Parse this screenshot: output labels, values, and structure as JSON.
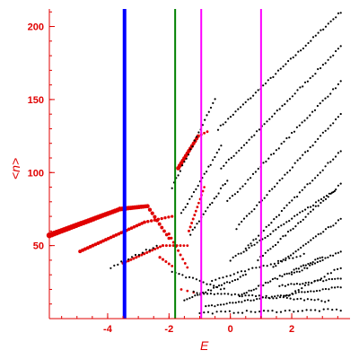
{
  "chart_data": {
    "type": "scatter",
    "xlabel": "E",
    "ylabel": "<n>",
    "xlim": [
      -5.9,
      3.9
    ],
    "ylim": [
      0,
      212
    ],
    "x_ticks": [
      {
        "value": -4,
        "label": "-4"
      },
      {
        "value": -2,
        "label": "-2"
      },
      {
        "value": 0,
        "label": "0"
      },
      {
        "value": 2,
        "label": "2"
      }
    ],
    "y_ticks": [
      {
        "value": 50,
        "label": "50"
      },
      {
        "value": 100,
        "label": "100"
      },
      {
        "value": 150,
        "label": "150"
      },
      {
        "value": 200,
        "label": "200"
      }
    ],
    "colors": {
      "axis": "#e00000",
      "red_points": "#e00000",
      "black_points": "#000000",
      "blue_line": "#0000ff",
      "green_line": "#008000",
      "magenta_line": "#ff00ff"
    },
    "vertical_lines": [
      {
        "x": -3.45,
        "color": "#0000ff",
        "width": "thick"
      },
      {
        "x": -1.8,
        "color": "#008000",
        "width": "medium"
      },
      {
        "x": -0.95,
        "color": "#ff00ff",
        "width": "medium"
      },
      {
        "x": 1.0,
        "color": "#ff00ff",
        "width": "medium"
      }
    ],
    "series": [
      {
        "color": "#e00000",
        "segments": [
          {
            "x_start": -5.9,
            "x_end": -3.6,
            "y_start": 57,
            "y_end": 75,
            "count": 30,
            "size_start": 3.2,
            "size_end": 2.6
          },
          {
            "x_start": -3.6,
            "x_end": -2.7,
            "y_start": 75,
            "y_end": 77,
            "count": 14,
            "size_start": 2.6,
            "size_end": 2.3
          },
          {
            "x_start": -2.7,
            "x_end": -2.0,
            "y_start": 77,
            "y_end": 55,
            "count": 10,
            "size_start": 2.2,
            "size_end": 1.8
          },
          {
            "x_start": -4.9,
            "x_end": -2.8,
            "y_start": 46,
            "y_end": 66,
            "count": 26,
            "size_start": 2.0,
            "size_end": 1.8
          },
          {
            "x_start": -2.8,
            "x_end": -1.9,
            "y_start": 66,
            "y_end": 70,
            "count": 9,
            "size_start": 1.8,
            "size_end": 1.6
          },
          {
            "x_start": -3.5,
            "x_end": -2.2,
            "y_start": 38,
            "y_end": 50,
            "count": 16,
            "size_start": 1.6,
            "size_end": 1.5
          },
          {
            "x_start": -2.2,
            "x_end": -1.4,
            "y_start": 50,
            "y_end": 50,
            "count": 8,
            "size_start": 1.5,
            "size_end": 1.4
          },
          {
            "x_start": -1.7,
            "x_end": -1.05,
            "y_start": 103,
            "y_end": 125,
            "count": 14,
            "size_start": 2.4,
            "size_end": 2.0
          },
          {
            "x_start": -1.05,
            "x_end": -0.75,
            "y_start": 125,
            "y_end": 128,
            "count": 4,
            "size_start": 1.6,
            "size_end": 1.4
          },
          {
            "x_start": -1.35,
            "x_end": -0.85,
            "y_start": 60,
            "y_end": 90,
            "count": 12,
            "size_start": 1.5,
            "size_end": 1.3
          },
          {
            "x_start": -2.0,
            "x_end": -1.4,
            "y_start": 58,
            "y_end": 35,
            "count": 9,
            "size_start": 1.6,
            "size_end": 1.4
          },
          {
            "x_start": -2.3,
            "x_end": -1.9,
            "y_start": 42,
            "y_end": 36,
            "count": 5,
            "size_start": 1.6,
            "size_end": 1.4
          },
          {
            "x_start": -1.6,
            "x_end": -1.2,
            "y_start": 20,
            "y_end": 18,
            "count": 3,
            "size_start": 1.4,
            "size_end": 1.3
          }
        ]
      },
      {
        "color": "#000000",
        "segments": [
          {
            "x_start": -0.4,
            "x_end": 3.6,
            "y_start": 130,
            "y_end": 210,
            "count": 50,
            "size_start": 1.1,
            "size_end": 1.1
          },
          {
            "x_start": -0.3,
            "x_end": 3.6,
            "y_start": 103,
            "y_end": 186,
            "count": 48,
            "size_start": 1.1,
            "size_end": 1.1
          },
          {
            "x_start": -0.1,
            "x_end": 3.6,
            "y_start": 80,
            "y_end": 162,
            "count": 45,
            "size_start": 1.1,
            "size_end": 1.1
          },
          {
            "x_start": 0.2,
            "x_end": 3.6,
            "y_start": 62,
            "y_end": 140,
            "count": 42,
            "size_start": 1.1,
            "size_end": 1.1
          },
          {
            "x_start": 0.5,
            "x_end": 3.6,
            "y_start": 48,
            "y_end": 115,
            "count": 38,
            "size_start": 1.1,
            "size_end": 1.1
          },
          {
            "x_start": 0.9,
            "x_end": 3.6,
            "y_start": 40,
            "y_end": 92,
            "count": 34,
            "size_start": 1.1,
            "size_end": 1.1
          },
          {
            "x_start": 1.4,
            "x_end": 3.6,
            "y_start": 35,
            "y_end": 68,
            "count": 28,
            "size_start": 1.1,
            "size_end": 1.1
          },
          {
            "x_start": 2.0,
            "x_end": 3.6,
            "y_start": 30,
            "y_end": 46,
            "count": 20,
            "size_start": 1.1,
            "size_end": 1.1
          },
          {
            "x_start": -3.9,
            "x_end": -2.4,
            "y_start": 35,
            "y_end": 50,
            "count": 14,
            "size_start": 1.1,
            "size_end": 1.1
          },
          {
            "x_start": -1.9,
            "x_end": -0.5,
            "y_start": 90,
            "y_end": 150,
            "count": 22,
            "size_start": 1.1,
            "size_end": 1.1
          },
          {
            "x_start": -1.6,
            "x_end": -0.3,
            "y_start": 72,
            "y_end": 118,
            "count": 20,
            "size_start": 1.1,
            "size_end": 1.1
          },
          {
            "x_start": -1.3,
            "x_end": -0.1,
            "y_start": 58,
            "y_end": 95,
            "count": 18,
            "size_start": 1.1,
            "size_end": 1.1
          },
          {
            "x_start": 0.0,
            "x_end": 3.4,
            "y_start": 40,
            "y_end": 88,
            "count": 40,
            "size_start": 1.1,
            "size_end": 1.1
          },
          {
            "x_start": 0.3,
            "x_end": 3.0,
            "y_start": 16,
            "y_end": 42,
            "count": 36,
            "size_start": 1.1,
            "size_end": 1.1
          },
          {
            "x_start": -1.5,
            "x_end": 0.5,
            "y_start": 12,
            "y_end": 30,
            "count": 24,
            "size_start": 1.1,
            "size_end": 1.1
          },
          {
            "x_start": -0.8,
            "x_end": 3.6,
            "y_start": 8,
            "y_end": 22,
            "count": 46,
            "size_start": 1.1,
            "size_end": 1.1
          },
          {
            "x_start": -1.2,
            "x_end": 3.2,
            "y_start": 18,
            "y_end": 12,
            "count": 40,
            "size_start": 1.1,
            "size_end": 1.1
          },
          {
            "x_start": -1.9,
            "x_end": -0.2,
            "y_start": 32,
            "y_end": 20,
            "count": 16,
            "size_start": 1.1,
            "size_end": 1.1
          },
          {
            "x_start": 1.6,
            "x_end": 3.6,
            "y_start": 22,
            "y_end": 28,
            "count": 22,
            "size_start": 1.1,
            "size_end": 1.1
          },
          {
            "x_start": -0.6,
            "x_end": 2.4,
            "y_start": 26,
            "y_end": 44,
            "count": 26,
            "size_start": 1.1,
            "size_end": 1.1
          },
          {
            "x_start": -1.0,
            "x_end": 3.6,
            "y_start": 4,
            "y_end": 6,
            "count": 34,
            "size_start": 1.1,
            "size_end": 1.1
          },
          {
            "x_start": 1.8,
            "x_end": 3.6,
            "y_start": 15,
            "y_end": 35,
            "count": 18,
            "size_start": 1.1,
            "size_end": 1.1
          }
        ]
      }
    ]
  }
}
